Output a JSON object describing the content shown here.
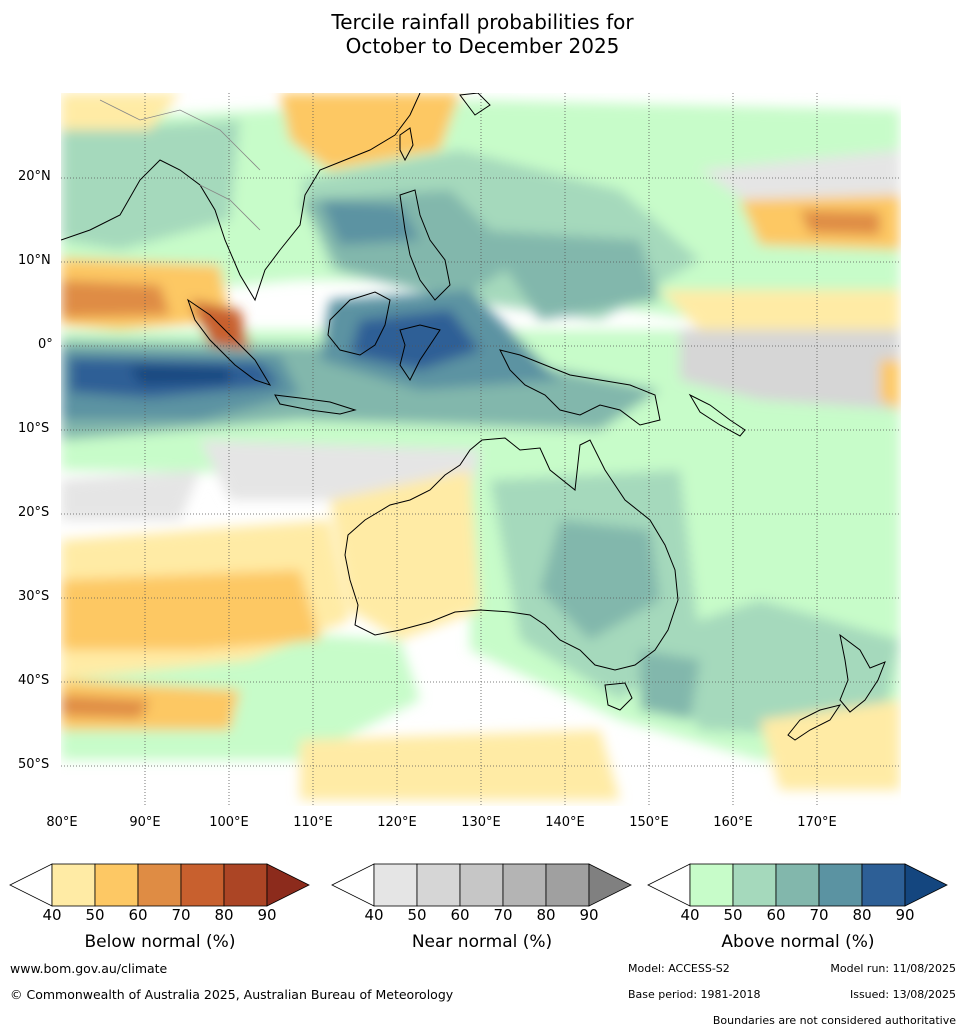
{
  "title": {
    "line1": "Tercile rainfall probabilities for",
    "line2": "October to December 2025"
  },
  "map": {
    "region": "Australia and surrounds",
    "lat_labels": [
      "20°N",
      "10°N",
      "0°",
      "10°S",
      "20°S",
      "30°S",
      "40°S",
      "50°S"
    ],
    "lon_labels": [
      "80°E",
      "90°E",
      "100°E",
      "110°E",
      "120°E",
      "130°E",
      "140°E",
      "150°E",
      "160°E",
      "170°E"
    ],
    "lon_range": [
      80,
      180
    ],
    "lat_range": [
      -55,
      30
    ],
    "gridlines": "dotted"
  },
  "legends": [
    {
      "name": "below",
      "title": "Below normal (%)",
      "ticks": [
        "40",
        "50",
        "60",
        "70",
        "80",
        "90"
      ],
      "colors": [
        "#ffffff",
        "#ffeba5",
        "#fdc864",
        "#df8c44",
        "#c8602e",
        "#ac4525",
        "#8c2b1c"
      ]
    },
    {
      "name": "near",
      "title": "Near normal (%)",
      "ticks": [
        "40",
        "50",
        "60",
        "70",
        "80",
        "90"
      ],
      "colors": [
        "#ffffff",
        "#e5e5e5",
        "#d6d6d6",
        "#c6c6c6",
        "#b4b4b4",
        "#a0a0a0",
        "#808080"
      ]
    },
    {
      "name": "above",
      "title": "Above normal (%)",
      "ticks": [
        "40",
        "50",
        "60",
        "70",
        "80",
        "90"
      ],
      "colors": [
        "#ffffff",
        "#c7fcc9",
        "#a5d9bc",
        "#82b7ac",
        "#5b93a2",
        "#2d5f96",
        "#14467f"
      ]
    }
  ],
  "footer": {
    "website": "www.bom.gov.au/climate",
    "copyright": "© Commonwealth of Australia 2025, Australian Bureau of Meteorology",
    "model": "Model: ACCESS-S2",
    "model_run": "Model run: 11/08/2025",
    "base_period": "Base period: 1981-2018",
    "issued": "Issued: 13/08/2025",
    "disclaimer": "Boundaries are not considered authoritative"
  }
}
